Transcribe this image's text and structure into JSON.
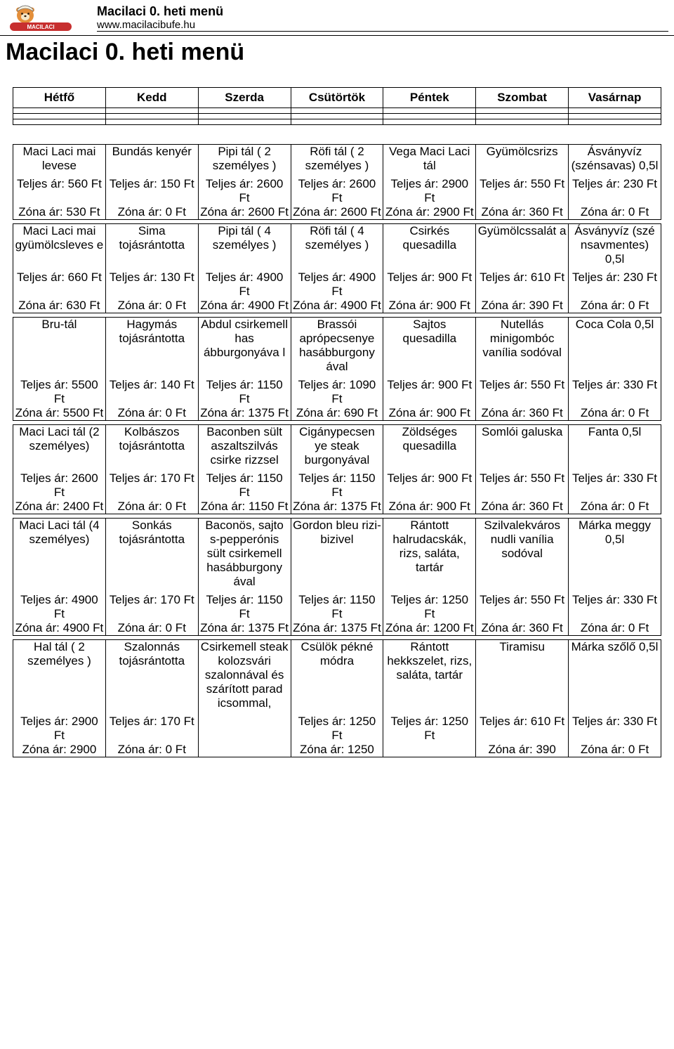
{
  "header": {
    "title": "Macilaci 0. heti menü",
    "url": "www.macilacibufe.hu"
  },
  "pageTitle": "Macilaci 0. heti menü",
  "days": [
    "Hétfő",
    "Kedd",
    "Szerda",
    "Csütörtök",
    "Péntek",
    "Szombat",
    "Vasárnap"
  ],
  "rows": [
    [
      {
        "name": "Maci Laci mai levese",
        "full": "Teljes ár: 560 Ft",
        "zone": "Zóna ár: 530 Ft"
      },
      {
        "name": "Bundás kenyér",
        "full": "Teljes ár: 150 Ft",
        "zone": "Zóna ár: 0 Ft"
      },
      {
        "name": "Pipi tál ( 2 személyes )",
        "full": "Teljes ár: 2600 Ft",
        "zone": "Zóna ár: 2600 Ft"
      },
      {
        "name": "Röfi tál ( 2 személyes )",
        "full": "Teljes ár: 2600 Ft",
        "zone": "Zóna ár: 2600 Ft"
      },
      {
        "name": "Vega Maci Laci tál",
        "full": "Teljes ár: 2900 Ft",
        "zone": "Zóna ár: 2900 Ft"
      },
      {
        "name": "Gyümölcsrizs",
        "full": "Teljes ár: 550 Ft",
        "zone": "Zóna ár: 360 Ft"
      },
      {
        "name": "Ásványvíz (szénsavas) 0,5l",
        "full": "Teljes ár: 230 Ft",
        "zone": "Zóna ár: 0 Ft"
      }
    ],
    [
      {
        "name": "Maci Laci mai gyümölcsleves e",
        "full": "Teljes ár: 660 Ft",
        "zone": "Zóna ár: 630 Ft"
      },
      {
        "name": "Sima tojásrántotta",
        "full": "Teljes ár: 130 Ft",
        "zone": "Zóna ár: 0 Ft"
      },
      {
        "name": "Pipi tál ( 4 személyes )",
        "full": "Teljes ár: 4900 Ft",
        "zone": "Zóna ár: 4900 Ft"
      },
      {
        "name": "Röfi tál ( 4 személyes )",
        "full": "Teljes ár: 4900 Ft",
        "zone": "Zóna ár: 4900 Ft"
      },
      {
        "name": "Csirkés quesadilla",
        "full": "Teljes ár: 900 Ft",
        "zone": "Zóna ár: 900 Ft"
      },
      {
        "name": "Gyümölcssalát a",
        "full": "Teljes ár: 610 Ft",
        "zone": "Zóna ár: 390 Ft"
      },
      {
        "name": "Ásványvíz (szé nsavmentes) 0,5l",
        "full": "Teljes ár: 230 Ft",
        "zone": "Zóna ár: 0 Ft"
      }
    ],
    [
      {
        "name": "Bru-tál",
        "full": "Teljes ár: 5500 Ft",
        "zone": "Zóna ár: 5500 Ft"
      },
      {
        "name": "Hagymás tojásrántotta",
        "full": "Teljes ár: 140 Ft",
        "zone": "Zóna ár: 0 Ft"
      },
      {
        "name": "Abdul csirkemell has ábburgonyáva l",
        "full": "Teljes ár: 1150 Ft",
        "zone": "Zóna ár: 1375 Ft"
      },
      {
        "name": "Brassói aprópecsenye hasábburgony ával",
        "full": "Teljes ár: 1090 Ft",
        "zone": "Zóna ár: 690 Ft"
      },
      {
        "name": "Sajtos quesadilla",
        "full": "Teljes ár: 900 Ft",
        "zone": "Zóna ár: 900 Ft"
      },
      {
        "name": "Nutellás minigombóc vanília sodóval",
        "full": "Teljes ár: 550 Ft",
        "zone": "Zóna ár: 360 Ft"
      },
      {
        "name": "Coca Cola 0,5l",
        "full": "Teljes ár: 330 Ft",
        "zone": "Zóna ár: 0 Ft"
      }
    ],
    [
      {
        "name": "Maci Laci tál (2 személyes)",
        "full": "Teljes ár: 2600 Ft",
        "zone": "Zóna ár: 2400 Ft"
      },
      {
        "name": "Kolbászos tojásrántotta",
        "full": "Teljes ár: 170 Ft",
        "zone": "Zóna ár: 0 Ft"
      },
      {
        "name": "Baconben sült aszaltszilvás csirke rizzsel",
        "full": "Teljes ár: 1150 Ft",
        "zone": "Zóna ár: 1150 Ft"
      },
      {
        "name": "Cigánypecsen ye steak burgonyával",
        "full": "Teljes ár: 1150 Ft",
        "zone": "Zóna ár: 1375 Ft"
      },
      {
        "name": "Zöldséges quesadilla",
        "full": "Teljes ár: 900 Ft",
        "zone": "Zóna ár: 900 Ft"
      },
      {
        "name": "Somlói galuska",
        "full": "Teljes ár: 550 Ft",
        "zone": "Zóna ár: 360 Ft"
      },
      {
        "name": "Fanta 0,5l",
        "full": "Teljes ár: 330 Ft",
        "zone": "Zóna ár: 0 Ft"
      }
    ],
    [
      {
        "name": "Maci Laci tál (4 személyes)",
        "full": "Teljes ár: 4900 Ft",
        "zone": "Zóna ár: 4900 Ft"
      },
      {
        "name": "Sonkás tojásrántotta",
        "full": "Teljes ár: 170 Ft",
        "zone": "Zóna ár: 0 Ft"
      },
      {
        "name": "Baconös, sajto s-pepperónis sült csirkemell hasábburgony ával",
        "full": "Teljes ár: 1150 Ft",
        "zone": "Zóna ár: 1375 Ft"
      },
      {
        "name": "Gordon bleu rizi-bizivel",
        "full": "Teljes ár: 1150 Ft",
        "zone": "Zóna ár: 1375 Ft"
      },
      {
        "name": "Rántott halrudacskák, rizs, saláta, tartár",
        "full": "Teljes ár: 1250 Ft",
        "zone": "Zóna ár: 1200 Ft"
      },
      {
        "name": "Szilvalekváros nudli vanília sodóval",
        "full": "Teljes ár: 550 Ft",
        "zone": "Zóna ár: 360 Ft"
      },
      {
        "name": "Márka meggy 0,5l",
        "full": "Teljes ár: 330 Ft",
        "zone": "Zóna ár: 0 Ft"
      }
    ],
    [
      {
        "name": "Hal tál ( 2 személyes )",
        "full": "Teljes ár: 2900 Ft",
        "zone": "Zóna ár: 2900"
      },
      {
        "name": "Szalonnás tojásrántotta",
        "full": "Teljes ár: 170 Ft",
        "zone": "Zóna ár: 0 Ft"
      },
      {
        "name": "Csirkemell steak kolozsvári szalonnával és szárított parad icsommal,",
        "full": "",
        "zone": ""
      },
      {
        "name": "Csülök pékné módra",
        "full": "Teljes ár: 1250 Ft",
        "zone": "Zóna ár: 1250"
      },
      {
        "name": "Rántott hekkszelet, rizs, saláta, tartár",
        "full": "Teljes ár: 1250 Ft",
        "zone": ""
      },
      {
        "name": "Tiramisu",
        "full": "Teljes ár: 610 Ft",
        "zone": "Zóna ár: 390"
      },
      {
        "name": "Márka szőlő 0,5l",
        "full": "Teljes ár: 330 Ft",
        "zone": "Zóna ár: 0 Ft"
      }
    ]
  ],
  "style": {
    "pageWidth": 960,
    "pageHeight": 1493,
    "background": "#ffffff",
    "text": "#000000",
    "border": "#000000",
    "fontFamily": "Arial",
    "titleFontSize": 34,
    "headerFontSize": 18,
    "bodyFontSize": 17,
    "logoColors": {
      "bear": "#e48f3a",
      "hat": "#f5f0e0",
      "bannerBg": "#c72f2f",
      "bannerText": "#ffffff"
    }
  }
}
